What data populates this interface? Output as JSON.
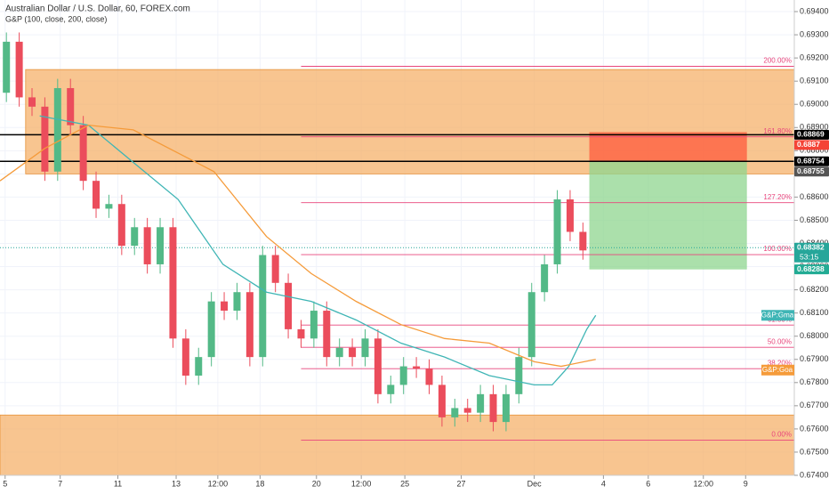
{
  "chart_data": {
    "type": "candlestick",
    "title": "Australian Dollar / U.S. Dollar, 60, FOREX.com",
    "subtitle": "G&P (100, close, 200, close)",
    "open": [
      0.6905,
      0.6927,
      0.6903,
      0.6899,
      0.6871,
      0.6907,
      0.6891,
      0.6867,
      0.6855,
      0.6857,
      0.6839,
      0.6847,
      0.6831,
      0.6847,
      0.6799,
      0.6783,
      0.6791,
      0.6815,
      0.6811,
      0.6819,
      0.6791,
      0.6835,
      0.6823,
      0.6803,
      0.6799,
      0.6811,
      0.6791,
      0.6795,
      0.6791,
      0.6799,
      0.6775,
      0.6779,
      0.6787,
      0.6786,
      0.6779,
      0.6765,
      0.6769,
      0.6767,
      0.6775,
      0.6763,
      0.6775,
      0.6791,
      0.6819,
      0.6831,
      0.6859,
      0.6845
    ],
    "high": [
      0.6931,
      0.6931,
      0.6907,
      0.6903,
      0.6911,
      0.6911,
      0.6895,
      0.6871,
      0.6861,
      0.6861,
      0.6851,
      0.6851,
      0.6851,
      0.6851,
      0.6803,
      0.6795,
      0.6819,
      0.6819,
      0.6823,
      0.6823,
      0.6839,
      0.6839,
      0.6827,
      0.6807,
      0.6815,
      0.6815,
      0.6799,
      0.6799,
      0.6803,
      0.6803,
      0.6783,
      0.6791,
      0.6791,
      0.679,
      0.6783,
      0.6773,
      0.6773,
      0.6779,
      0.6779,
      0.6779,
      0.6795,
      0.6823,
      0.6835,
      0.6863,
      0.6863,
      0.6849
    ],
    "low": [
      0.6901,
      0.6899,
      0.6895,
      0.6867,
      0.6867,
      0.6887,
      0.6863,
      0.6851,
      0.6851,
      0.6835,
      0.6835,
      0.6827,
      0.6827,
      0.6795,
      0.6779,
      0.6779,
      0.6787,
      0.6807,
      0.6807,
      0.6787,
      0.6787,
      0.6819,
      0.6799,
      0.6795,
      0.6795,
      0.6787,
      0.6787,
      0.6787,
      0.6787,
      0.6771,
      0.6771,
      0.6775,
      0.6782,
      0.6775,
      0.6761,
      0.6761,
      0.6763,
      0.6763,
      0.6759,
      0.6759,
      0.6771,
      0.6787,
      0.6815,
      0.6827,
      0.6841,
      0.6833
    ],
    "close": [
      0.6927,
      0.6903,
      0.6899,
      0.6871,
      0.6907,
      0.6891,
      0.6867,
      0.6855,
      0.6857,
      0.6839,
      0.6847,
      0.6831,
      0.6847,
      0.6799,
      0.6783,
      0.6791,
      0.6815,
      0.6811,
      0.6819,
      0.6791,
      0.6835,
      0.6823,
      0.6803,
      0.6799,
      0.6811,
      0.6791,
      0.6795,
      0.6791,
      0.6799,
      0.6775,
      0.6779,
      0.6787,
      0.6786,
      0.6779,
      0.6765,
      0.6769,
      0.6767,
      0.6775,
      0.6763,
      0.6775,
      0.6791,
      0.6819,
      0.6831,
      0.6859,
      0.6845,
      0.6837
    ],
    "up_color": "#53b987",
    "down_color": "#eb4d5c",
    "series": [
      {
        "name": "G&P:Gma",
        "color": "#3fb5b5",
        "x": [
          3.1,
          6.9,
          10.4,
          13.9,
          17.4,
          20.8,
          24.3,
          27.8,
          31.3,
          34.7,
          38.2,
          41.7,
          43.1,
          44.4,
          45.8,
          46.5
        ],
        "values": [
          0.6895,
          0.6891,
          0.6875,
          0.6859,
          0.6831,
          0.6819,
          0.6815,
          0.6807,
          0.6797,
          0.6791,
          0.6783,
          0.6779,
          0.6779,
          0.6787,
          0.6803,
          0.6809
        ]
      },
      {
        "name": "G&P:Goa",
        "color": "#f59b3a",
        "x": [
          0,
          3.5,
          6.9,
          10.4,
          13.9,
          16.7,
          20.8,
          24.3,
          27.8,
          31.3,
          34.7,
          38.2,
          41.7,
          43.8,
          46.5
        ],
        "values": [
          0.6867,
          0.6881,
          0.6891,
          0.6889,
          0.6879,
          0.6871,
          0.6843,
          0.6827,
          0.6815,
          0.6805,
          0.6799,
          0.6797,
          0.6789,
          0.6787,
          0.679
        ]
      }
    ],
    "zones": [
      {
        "x": [
          2,
          62
        ],
        "y": [
          0.6915,
          0.687
        ]
      },
      {
        "x": [
          0,
          62
        ],
        "y": [
          0.6766,
          0.674
        ]
      }
    ],
    "fib": {
      "x": [
        23.5,
        62
      ],
      "levels": [
        {
          "label": "200.00%",
          "price": 0.69164
        },
        {
          "label": "161.80%",
          "price": 0.6886
        },
        {
          "label": "127.20%",
          "price": 0.68576
        },
        {
          "label": "100.00%",
          "price": 0.68352
        },
        {
          "label": "61.80%",
          "price": 0.68048
        },
        {
          "label": "50.00%",
          "price": 0.67952
        },
        {
          "label": "38.20%",
          "price": 0.6786
        },
        {
          "label": "0.00%",
          "price": 0.67552
        }
      ]
    },
    "position": {
      "x": [
        46,
        58.3
      ],
      "entry": 0.68755,
      "stop": 0.6888,
      "target": 0.68288
    },
    "hlines": [
      0.68869,
      0.68754
    ],
    "last_price": 0.68382,
    "price_labels": [
      {
        "value": 0.68869,
        "color": "#000000"
      },
      {
        "value": 0.6887,
        "color": "#f44336"
      },
      {
        "value": 0.68754,
        "color": "#000000"
      },
      {
        "value": 0.68755,
        "color": "#555555"
      },
      {
        "value": 0.68382,
        "color": "#26a69a",
        "countdown": "53:15"
      },
      {
        "value": 0.68288,
        "color": "#22ab94"
      }
    ],
    "xlim": [
      0,
      62
    ],
    "ylim": [
      0.674,
      0.6945
    ],
    "xticks": [
      {
        "value": 0.4,
        "label": "5"
      },
      {
        "value": 4.7,
        "label": "7"
      },
      {
        "value": 9.2,
        "label": "11"
      },
      {
        "value": 13.75,
        "label": "13"
      },
      {
        "value": 17,
        "label": "12:00"
      },
      {
        "value": 20.3,
        "label": "18"
      },
      {
        "value": 24.7,
        "label": "20"
      },
      {
        "value": 28.2,
        "label": "12:00"
      },
      {
        "value": 31.6,
        "label": "25"
      },
      {
        "value": 36,
        "label": "27"
      },
      {
        "value": 41.7,
        "label": "Dec"
      },
      {
        "value": 47.1,
        "label": "4"
      },
      {
        "value": 50.6,
        "label": "6"
      },
      {
        "value": 54.9,
        "label": "12:00"
      },
      {
        "value": 58.2,
        "label": "9"
      }
    ],
    "yticks": [
      {
        "value": 0.674,
        "label": "0.67400"
      },
      {
        "value": 0.675,
        "label": "0.67500"
      },
      {
        "value": 0.676,
        "label": "0.67600"
      },
      {
        "value": 0.677,
        "label": "0.67700"
      },
      {
        "value": 0.678,
        "label": "0.67800"
      },
      {
        "value": 0.679,
        "label": "0.67900"
      },
      {
        "value": 0.68,
        "label": "0.68000"
      },
      {
        "value": 0.681,
        "label": "0.68100"
      },
      {
        "value": 0.682,
        "label": "0.68200"
      },
      {
        "value": 0.683,
        "label": "0.68300"
      },
      {
        "value": 0.684,
        "label": "0.68400"
      },
      {
        "value": 0.685,
        "label": "0.68500"
      },
      {
        "value": 0.686,
        "label": "0.68600"
      },
      {
        "value": 0.687,
        "label": "0.68700"
      },
      {
        "value": 0.688,
        "label": "0.68800"
      },
      {
        "value": 0.689,
        "label": "0.68900"
      },
      {
        "value": 0.69,
        "label": "0.69000"
      },
      {
        "value": 0.691,
        "label": "0.69100"
      },
      {
        "value": 0.692,
        "label": "0.69200"
      },
      {
        "value": 0.693,
        "label": "0.69300"
      },
      {
        "value": 0.694,
        "label": "0.69400"
      }
    ],
    "grid": true
  }
}
